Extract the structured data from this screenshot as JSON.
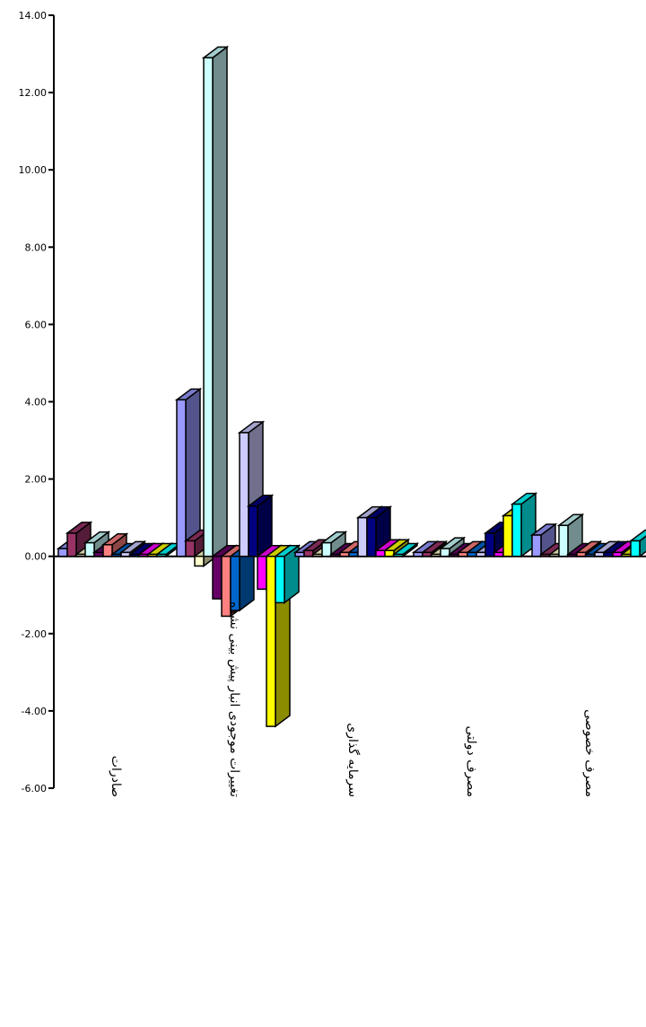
{
  "chart_data": {
    "type": "bar3d",
    "categories": [
      "صادرات",
      "تغییرات موجودی انبار پیش بینی نشده",
      "سرمایه گذاری",
      "مصرف دولتی",
      "مصرف خصوصی"
    ],
    "series": [
      {
        "color": "#9999FF",
        "values": [
          0.2,
          4.05,
          0.1,
          0.1,
          0.55
        ]
      },
      {
        "color": "#993366",
        "values": [
          0.6,
          0.4,
          0.15,
          0.1,
          0.05
        ]
      },
      {
        "color": "#FFFFCC",
        "values": [
          0.05,
          -0.25,
          0.05,
          0.05,
          0.05
        ]
      },
      {
        "color": "#CCFFFF",
        "values": [
          0.35,
          12.9,
          0.35,
          0.2,
          0.8
        ]
      },
      {
        "color": "#660066",
        "values": [
          0.1,
          -1.1,
          0.05,
          0.05,
          0.05
        ]
      },
      {
        "color": "#FF8080",
        "values": [
          0.3,
          -1.55,
          0.1,
          0.1,
          0.1
        ]
      },
      {
        "color": "#0066CC",
        "values": [
          0.05,
          -1.4,
          0.1,
          0.1,
          0.05
        ]
      },
      {
        "color": "#CCCCFF",
        "values": [
          0.1,
          3.2,
          1.0,
          0.1,
          0.1
        ]
      },
      {
        "color": "#000080",
        "values": [
          0.05,
          1.3,
          1.0,
          0.6,
          0.1
        ]
      },
      {
        "color": "#FF00FF",
        "values": [
          0.05,
          -0.85,
          0.15,
          0.1,
          0.1
        ]
      },
      {
        "color": "#FFFF00",
        "values": [
          0.05,
          -4.4,
          0.15,
          1.05,
          0.05
        ]
      },
      {
        "color": "#00FFFF",
        "values": [
          0.05,
          -1.2,
          0.05,
          1.35,
          0.4
        ]
      }
    ],
    "ylim": [
      -6,
      14
    ],
    "yticks": [
      {
        "value": -6,
        "label": "-6.00"
      },
      {
        "value": -4,
        "label": "-4.00"
      },
      {
        "value": -2,
        "label": "-2.00"
      },
      {
        "value": 0,
        "label": "0.00"
      },
      {
        "value": 2,
        "label": "2.00"
      },
      {
        "value": 4,
        "label": "4.00"
      },
      {
        "value": 6,
        "label": "6.00"
      },
      {
        "value": 8,
        "label": "8.00"
      },
      {
        "value": 10,
        "label": "10.00"
      },
      {
        "value": 12,
        "label": "12.00"
      },
      {
        "value": 14,
        "label": "14.00"
      }
    ]
  }
}
